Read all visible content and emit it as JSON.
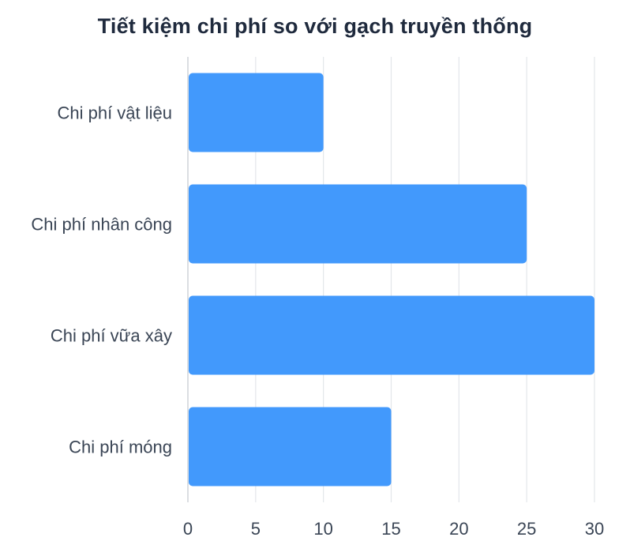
{
  "chart_data": {
    "type": "bar",
    "orientation": "horizontal",
    "title": "Tiết kiệm chi phí so với gạch truyền thống",
    "xlabel": "",
    "ylabel": "",
    "categories": [
      "Chi phí vật liệu",
      "Chi phí nhân công",
      "Chi phí vữa xây",
      "Chi phí móng"
    ],
    "values": [
      10,
      25,
      30,
      15
    ],
    "xlim": [
      0,
      30
    ],
    "xticks": [
      0,
      5,
      10,
      15,
      20,
      25,
      30
    ],
    "grid": true,
    "bar_color": "#4299fc",
    "grid_color": "#e3e6ea",
    "axis_color": "#cfd3d8"
  }
}
